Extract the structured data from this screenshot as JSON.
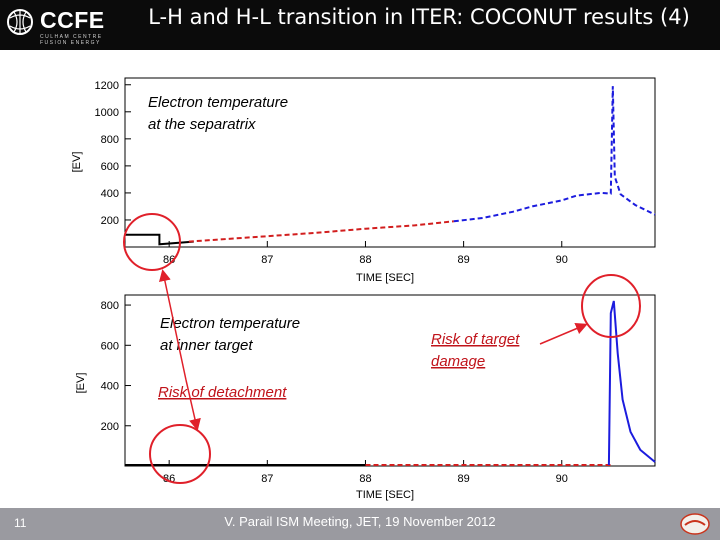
{
  "header": {
    "logo_text": "CCFE",
    "logo_sub1": "CULHAM CENTRE",
    "logo_sub2": "FUSION ENERGY",
    "title": "L-H and H-L transition in ITER: COCONUT results (4)"
  },
  "footer": {
    "slide_number": "11",
    "text": "V. Parail ISM Meeting, JET, 19 November 2012"
  },
  "colors": {
    "header_bg": "#0b0b0b",
    "footer_bg": "#9a9aa0",
    "black_line": "#000000",
    "red": "#d21e1e",
    "blue": "#1c1cde",
    "annotation_red": "#c0131a",
    "circle_red": "#e0202a"
  },
  "annotations": {
    "top_label": [
      "Electron temperature",
      "at the separatrix"
    ],
    "bottom_label": [
      "Electron temperature",
      "at inner target"
    ],
    "risk_target": [
      "Risk of target",
      "damage"
    ],
    "risk_detachment": "Risk of detachment"
  },
  "chart_data": [
    {
      "type": "line",
      "xlabel": "TIME [SEC]",
      "ylabel": "[EV]",
      "xlim": [
        85.55,
        90.95
      ],
      "ylim": [
        0,
        1250
      ],
      "x_ticks": [
        86,
        87,
        88,
        89,
        90
      ],
      "y_ticks": [
        200,
        400,
        600,
        800,
        1000,
        1200
      ],
      "series": [
        {
          "color": "#000000",
          "style": "solid",
          "points": [
            [
              85.55,
              90
            ],
            [
              85.9,
              90
            ],
            [
              85.9,
              20
            ],
            [
              86.25,
              40
            ]
          ]
        },
        {
          "color": "#d21e1e",
          "style": "dashed",
          "points": [
            [
              86.2,
              40
            ],
            [
              86.6,
              60
            ],
            [
              87.0,
              80
            ],
            [
              87.5,
              105
            ],
            [
              88.0,
              135
            ],
            [
              88.5,
              160
            ],
            [
              88.9,
              190
            ]
          ]
        },
        {
          "color": "#1c1cde",
          "style": "dashed",
          "points": [
            [
              88.9,
              190
            ],
            [
              89.2,
              215
            ],
            [
              89.5,
              260
            ],
            [
              89.7,
              300
            ],
            [
              89.9,
              330
            ],
            [
              90.0,
              345
            ],
            [
              90.15,
              380
            ],
            [
              90.4,
              400
            ],
            [
              90.5,
              395
            ],
            [
              90.52,
              1190
            ],
            [
              90.54,
              520
            ],
            [
              90.6,
              390
            ],
            [
              90.75,
              310
            ],
            [
              90.95,
              240
            ]
          ]
        }
      ]
    },
    {
      "type": "line",
      "xlabel": "TIME [SEC]",
      "ylabel": "[EV]",
      "xlim": [
        85.55,
        90.95
      ],
      "ylim": [
        0,
        850
      ],
      "x_ticks": [
        86,
        87,
        88,
        89,
        90
      ],
      "y_ticks": [
        200,
        400,
        600,
        800
      ],
      "series": [
        {
          "color": "#000000",
          "style": "solid",
          "points": [
            [
              85.55,
              5
            ],
            [
              86.5,
              5
            ],
            [
              87.5,
              5
            ],
            [
              88.0,
              5
            ]
          ]
        },
        {
          "color": "#d21e1e",
          "style": "dashed",
          "points": [
            [
              88.0,
              5
            ],
            [
              89.0,
              5
            ],
            [
              90.0,
              5
            ],
            [
              90.5,
              5
            ]
          ]
        },
        {
          "color": "#1c1cde",
          "style": "solid",
          "points": [
            [
              90.48,
              5
            ],
            [
              90.5,
              760
            ],
            [
              90.53,
              820
            ],
            [
              90.57,
              560
            ],
            [
              90.62,
              330
            ],
            [
              90.7,
              170
            ],
            [
              90.8,
              80
            ],
            [
              90.95,
              20
            ]
          ]
        }
      ]
    }
  ]
}
